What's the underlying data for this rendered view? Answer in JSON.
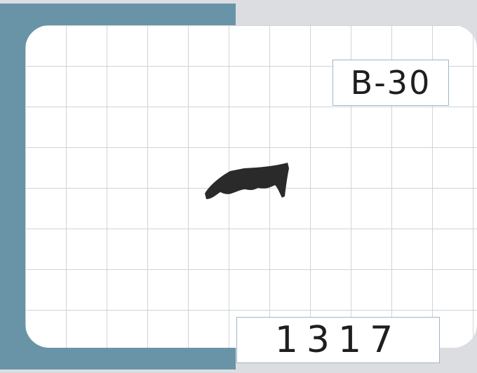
{
  "card": {
    "code": "B-30",
    "number": "1317"
  },
  "silhouette": {
    "shape": "black-silhouette",
    "color": "#2a2a2a"
  },
  "colors": {
    "frame": "#6994a8",
    "background": "#dcdde0",
    "grid_line": "#cfd4d9",
    "label_border": "#9fb6c6"
  }
}
